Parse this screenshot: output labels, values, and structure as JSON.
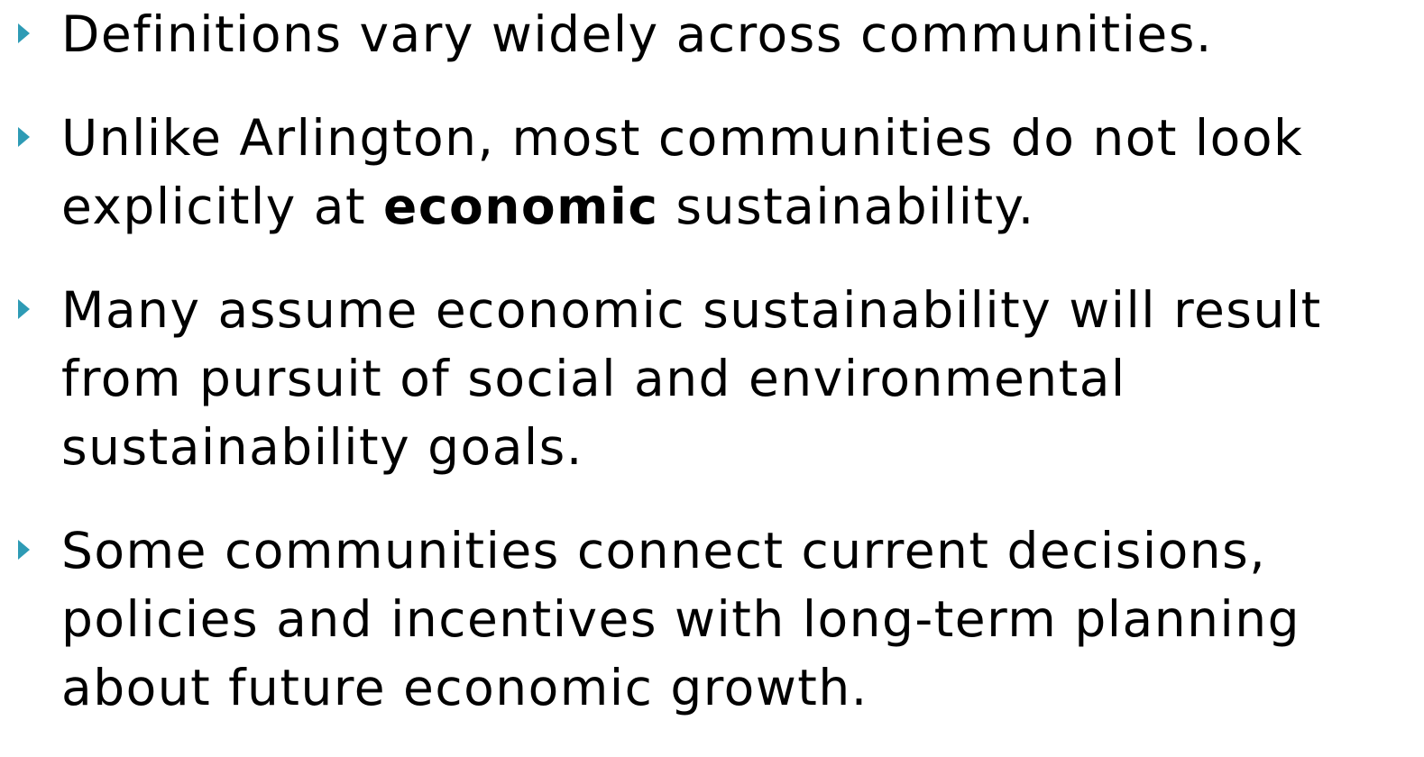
{
  "bullets": [
    {
      "parts": [
        "Definitions vary widely across communities."
      ]
    },
    {
      "parts": [
        "Unlike Arlington, most communities do not look explicitly at ",
        "economic",
        " sustainability."
      ]
    },
    {
      "parts": [
        "Many assume economic sustainability will result from pursuit of social and environmental sustainability goals."
      ]
    },
    {
      "parts": [
        "Some communities connect current decisions, policies and incentives with long-term planning about future economic growth."
      ]
    }
  ]
}
